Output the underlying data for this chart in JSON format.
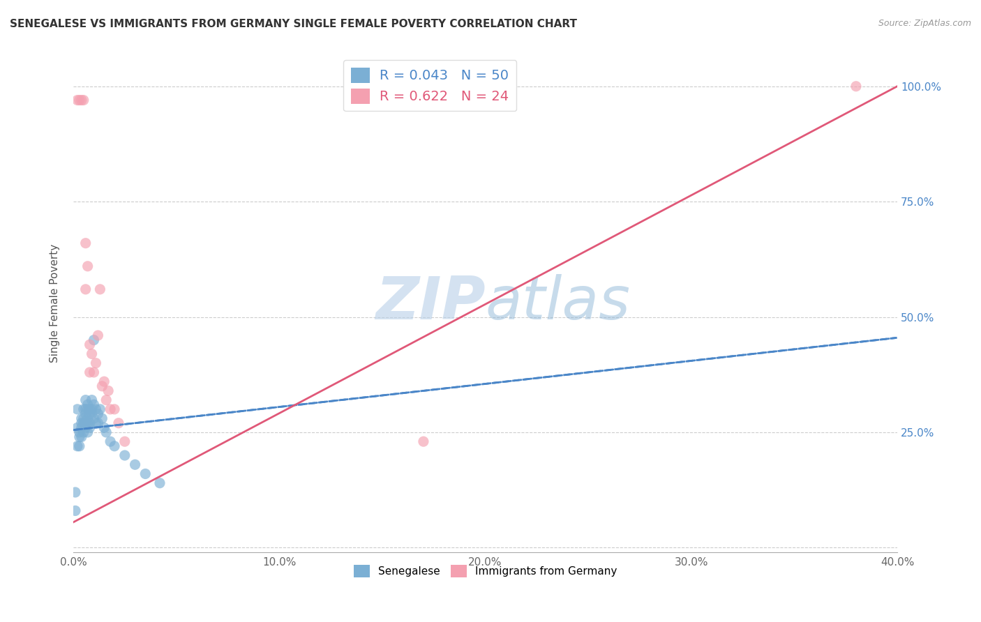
{
  "title": "SENEGALESE VS IMMIGRANTS FROM GERMANY SINGLE FEMALE POVERTY CORRELATION CHART",
  "source": "Source: ZipAtlas.com",
  "ylabel": "Single Female Poverty",
  "xlim": [
    0.0,
    0.4
  ],
  "ylim": [
    -0.01,
    1.07
  ],
  "xticks": [
    0.0,
    0.1,
    0.2,
    0.3,
    0.4
  ],
  "yticks_right": [
    0.0,
    0.25,
    0.5,
    0.75,
    1.0
  ],
  "ytick_labels_right": [
    "",
    "25.0%",
    "50.0%",
    "75.0%",
    "100.0%"
  ],
  "xtick_labels": [
    "0.0%",
    "10.0%",
    "20.0%",
    "30.0%",
    "40.0%"
  ],
  "blue_color": "#7bafd4",
  "pink_color": "#f4a0b0",
  "blue_line_color": "#4a86c8",
  "pink_line_color": "#e05878",
  "legend_blue_label": "R = 0.043   N = 50",
  "legend_pink_label": "R = 0.622   N = 24",
  "legend_bottom_blue": "Senegalese",
  "legend_bottom_pink": "Immigrants from Germany",
  "watermark_zip": "ZIP",
  "watermark_atlas": "atlas",
  "blue_trend_x0": 0.0,
  "blue_trend_y0": 0.255,
  "blue_trend_x1": 0.4,
  "blue_trend_y1": 0.455,
  "pink_trend_x0": 0.0,
  "pink_trend_y0": 0.055,
  "pink_trend_x1": 0.4,
  "pink_trend_y1": 1.0,
  "blue_x": [
    0.001,
    0.001,
    0.002,
    0.002,
    0.002,
    0.003,
    0.003,
    0.003,
    0.004,
    0.004,
    0.004,
    0.004,
    0.005,
    0.005,
    0.005,
    0.005,
    0.006,
    0.006,
    0.006,
    0.006,
    0.006,
    0.007,
    0.007,
    0.007,
    0.007,
    0.007,
    0.008,
    0.008,
    0.008,
    0.008,
    0.009,
    0.009,
    0.009,
    0.01,
    0.01,
    0.01,
    0.011,
    0.011,
    0.012,
    0.012,
    0.013,
    0.014,
    0.015,
    0.016,
    0.018,
    0.02,
    0.025,
    0.03,
    0.035,
    0.042
  ],
  "blue_y": [
    0.12,
    0.08,
    0.3,
    0.26,
    0.22,
    0.25,
    0.24,
    0.22,
    0.28,
    0.27,
    0.26,
    0.24,
    0.3,
    0.28,
    0.27,
    0.25,
    0.32,
    0.3,
    0.29,
    0.27,
    0.26,
    0.31,
    0.3,
    0.28,
    0.27,
    0.25,
    0.3,
    0.29,
    0.27,
    0.26,
    0.32,
    0.3,
    0.29,
    0.45,
    0.31,
    0.28,
    0.3,
    0.27,
    0.29,
    0.27,
    0.3,
    0.28,
    0.26,
    0.25,
    0.23,
    0.22,
    0.2,
    0.18,
    0.16,
    0.14
  ],
  "pink_x": [
    0.002,
    0.003,
    0.004,
    0.005,
    0.006,
    0.006,
    0.007,
    0.008,
    0.008,
    0.009,
    0.01,
    0.011,
    0.012,
    0.013,
    0.014,
    0.015,
    0.016,
    0.017,
    0.018,
    0.02,
    0.022,
    0.025,
    0.17,
    0.38
  ],
  "pink_y": [
    0.97,
    0.97,
    0.97,
    0.97,
    0.66,
    0.56,
    0.61,
    0.44,
    0.38,
    0.42,
    0.38,
    0.4,
    0.46,
    0.56,
    0.35,
    0.36,
    0.32,
    0.34,
    0.3,
    0.3,
    0.27,
    0.23,
    0.23,
    1.0
  ]
}
